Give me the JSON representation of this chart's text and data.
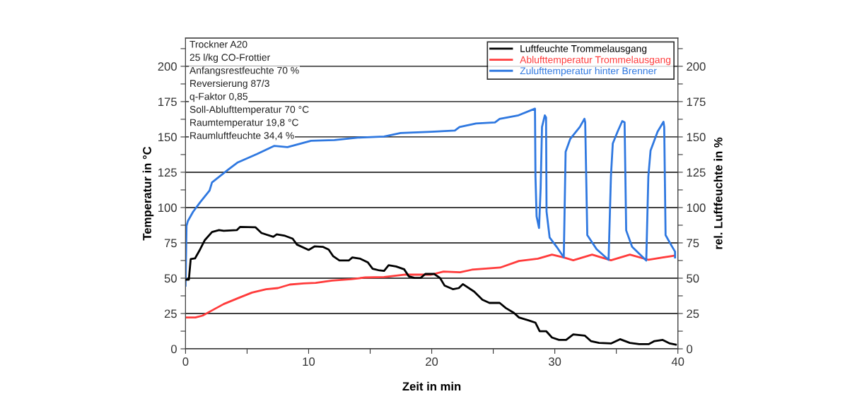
{
  "chart_data": {
    "type": "line",
    "xlabel": "Zeit in min",
    "ylabel": "Temperatur in °C",
    "y2label": "rel. Luftfeuchte in %",
    "annotations": [
      "Trockner A20",
      "25 l/kg CO-Frottier",
      "Anfangsrestfeuchte 70 %",
      "Reversierung 87/3",
      "q-Faktor 0,85",
      "Soll-Ablufttemperatur 70 °C",
      "Raumtemperatur 19,8 °C",
      "Raumluftfeuchte 34,4 %"
    ],
    "xlim": [
      0,
      40
    ],
    "xticks": [
      0,
      {
        "value": 5,
        "label": null
      },
      10,
      {
        "value": 15,
        "label": null
      },
      20,
      {
        "value": 25,
        "label": null
      },
      30,
      {
        "value": 35,
        "label": null
      },
      40
    ],
    "ylim": [
      0,
      220
    ],
    "yticks": [
      0,
      {
        "value": 12.5,
        "label": null
      },
      25,
      {
        "value": 37.5,
        "label": null
      },
      50,
      {
        "value": 62.5,
        "label": null
      },
      75,
      {
        "value": 87.5,
        "label": null
      },
      100,
      {
        "value": 112.5,
        "label": null
      },
      125,
      {
        "value": 137.5,
        "label": null
      },
      150,
      {
        "value": 162.5,
        "label": null
      },
      175,
      {
        "value": 187.5,
        "label": null
      },
      200,
      {
        "value": 212.5,
        "label": null
      }
    ],
    "y2lim": [
      0,
      220
    ],
    "y2ticks": [
      0,
      {
        "value": 12.5,
        "label": null
      },
      25,
      {
        "value": 37.5,
        "label": null
      },
      50,
      {
        "value": 62.5,
        "label": null
      },
      75,
      {
        "value": 87.5,
        "label": null
      },
      100,
      {
        "value": 112.5,
        "label": null
      },
      125,
      {
        "value": 137.5,
        "label": null
      },
      150,
      {
        "value": 162.5,
        "label": null
      },
      175,
      {
        "value": 187.5,
        "label": null
      },
      200,
      {
        "value": 212.5,
        "label": null
      }
    ],
    "grid": "y",
    "legend": "top right",
    "marker": "none",
    "line_style": "solid",
    "series": [
      {
        "name": "Luftfeuchte Trommelausgang",
        "color": "#000000",
        "axis": "y2",
        "x": [
          0,
          0.27,
          0.42,
          0.77,
          1.19,
          1.57,
          2.15,
          2.72,
          3.1,
          4.16,
          4.44,
          5.69,
          6.17,
          7.13,
          7.41,
          8.08,
          8.7,
          9.05,
          10,
          10.48,
          11.15,
          11.63,
          12,
          12.5,
          13.26,
          13.55,
          14.2,
          14.8,
          15.2,
          15.75,
          16.13,
          16.5,
          17.1,
          17.76,
          18.14,
          18.6,
          19.1,
          19.48,
          20.2,
          20.67,
          21.05,
          21.72,
          22.2,
          22.53,
          23.45,
          24.12,
          24.69,
          25.52,
          26.03,
          26.67,
          27.09,
          27.85,
          28.43,
          28.77,
          29.3,
          29.77,
          30.34,
          30.92,
          31.5,
          32.45,
          32.93,
          33.6,
          34.56,
          35.3,
          36.1,
          36.86,
          37.62,
          38.1,
          38.77,
          39.35,
          39.83
        ],
        "values": [
          49,
          49,
          63.5,
          64,
          70.5,
          77,
          82.7,
          84,
          83.5,
          84,
          86.3,
          86,
          82,
          79.3,
          81,
          80,
          78,
          73.8,
          70,
          72.5,
          72.2,
          70.2,
          65.5,
          62.5,
          62.5,
          64.7,
          63.8,
          61.3,
          56.7,
          55.5,
          55.2,
          59.2,
          58.3,
          56.3,
          51.3,
          50.2,
          50.2,
          53,
          53,
          50.2,
          44.7,
          42.2,
          43,
          45.8,
          40.5,
          34.7,
          32.5,
          32.5,
          28.8,
          25.5,
          22.2,
          20.2,
          18.5,
          12.5,
          12.5,
          8,
          6.3,
          6.3,
          10.2,
          9.3,
          5.5,
          4.2,
          3.8,
          6.8,
          4.2,
          3.3,
          3.3,
          5.5,
          6.3,
          3.8,
          3
        ]
      },
      {
        "name": "Ablufttemperatur Trommelausgang",
        "color": "#ff3b3b",
        "x": [
          0,
          0.8,
          1.38,
          2.15,
          3.1,
          4.25,
          5.4,
          6.55,
          7.5,
          8.47,
          9.6,
          10.57,
          11.9,
          13.45,
          14.6,
          16.13,
          17.85,
          19.96,
          20.96,
          22.3,
          23.26,
          25.56,
          27.09,
          28.62,
          29.77,
          30.73,
          31.5,
          33.03,
          34.56,
          36.1,
          37.62,
          38.77,
          39.73
        ],
        "values": [
          22.2,
          22.2,
          23.5,
          27.2,
          31.7,
          35.8,
          39.8,
          42.2,
          43,
          45.5,
          46.3,
          46.7,
          48.3,
          49.3,
          50.5,
          50.8,
          52.5,
          52.5,
          54.7,
          54.2,
          56,
          57.5,
          62.2,
          63.8,
          66.7,
          64.7,
          62.7,
          66.7,
          62.7,
          66.7,
          63,
          64.7,
          66
        ]
      },
      {
        "name": "Zulufttemperatur hinter Brenner",
        "color": "#2f78e0",
        "x": [
          0,
          0.08,
          0.19,
          0.61,
          1.19,
          1.95,
          2.15,
          3.49,
          4.25,
          5.79,
          7.22,
          8.28,
          10.2,
          12.1,
          14.0,
          16.13,
          17.47,
          19.96,
          21.88,
          22.26,
          23.6,
          25.14,
          25.52,
          27.05,
          28.39,
          28.43,
          28.52,
          28.72,
          28.85,
          28.96,
          29.19,
          29.29,
          29.33,
          29.58,
          30.15,
          30.73,
          30.88,
          31.26,
          32.03,
          32.41,
          32.47,
          32.64,
          33.4,
          34.37,
          34.56,
          34.71,
          35.1,
          35.48,
          35.67,
          35.8,
          36.28,
          37.43,
          37.6,
          37.78,
          38.35,
          38.83,
          38.89,
          39.0,
          39.54,
          39.77,
          39.77
        ],
        "values": [
          44.7,
          87,
          90.5,
          97,
          103.8,
          112,
          117.8,
          127,
          132,
          137.8,
          143.7,
          142.8,
          147.3,
          147.8,
          149.5,
          150.3,
          152.8,
          153.7,
          154.5,
          157,
          159.5,
          160.3,
          162.8,
          165.3,
          170,
          122,
          93.8,
          85.5,
          113.8,
          157,
          165.3,
          163.7,
          97.2,
          78.8,
          72.2,
          64.7,
          139.5,
          148.7,
          157,
          162.8,
          160.3,
          80.5,
          70.5,
          63,
          122,
          145.3,
          153.7,
          161.2,
          160.3,
          83.8,
          72.2,
          62.5,
          122,
          140.3,
          153.7,
          160.7,
          157,
          80.5,
          72.2,
          68.8,
          64.7
        ]
      }
    ]
  }
}
